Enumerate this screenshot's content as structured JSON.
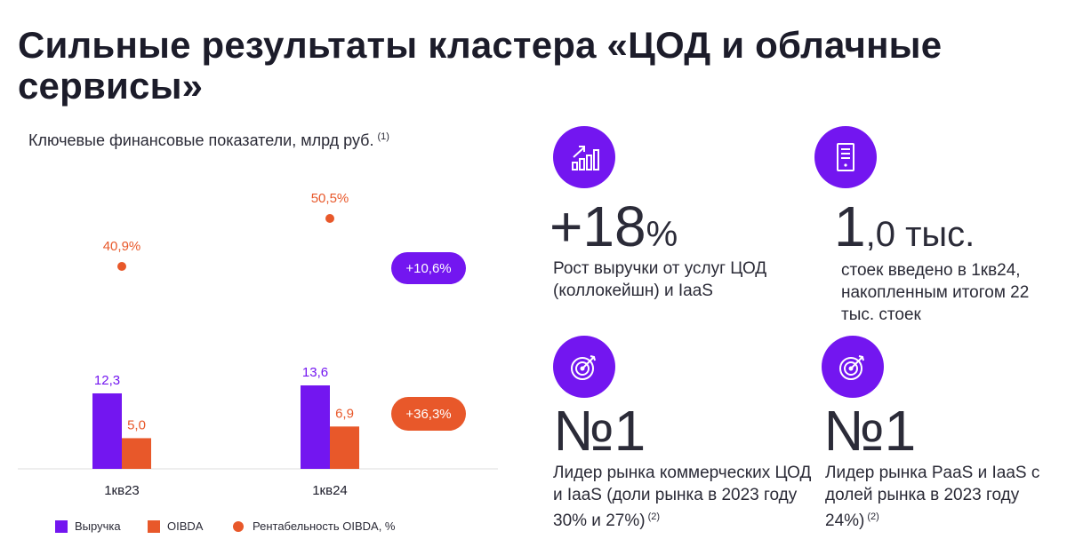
{
  "title": "Сильные результаты кластера «ЦОД и облачные сервисы»",
  "chart_subtitle": "Ключевые финансовые показатели, млрд руб.",
  "chart_subtitle_note": "(1)",
  "chart_data": {
    "type": "bar",
    "categories": [
      "1кв23",
      "1кв24"
    ],
    "series": [
      {
        "name": "Выручка",
        "values": [
          12.3,
          13.6
        ],
        "labels": [
          "12,3",
          "13,6"
        ],
        "color": "#7316f0"
      },
      {
        "name": "OIBDA",
        "values": [
          5.0,
          6.9
        ],
        "labels": [
          "5,0",
          "6,9"
        ],
        "color": "#e8582a"
      }
    ],
    "line_series": {
      "name": "Рентабельность OIBDA, %",
      "values": [
        40.9,
        50.5
      ],
      "labels": [
        "40,9%",
        "50,5%"
      ],
      "color": "#e8582a"
    },
    "growth_labels": {
      "revenue": "+10,6%",
      "oibda": "+36,3%"
    },
    "legend": [
      "Выручка",
      "OIBDA",
      "Рентабельность OIBDA, %"
    ],
    "title": "Ключевые финансовые показатели, млрд руб.",
    "xlabel": "",
    "ylabel": "",
    "ylim": [
      0,
      13.6
    ],
    "pct_ylim": [
      0,
      60
    ]
  },
  "colors": {
    "accent": "#7316f0",
    "orange": "#e8582a",
    "text": "#1c1c2a"
  },
  "stats": [
    {
      "icon": "chart-growth-icon",
      "value": "+18",
      "unit": "%",
      "desc": "Рост выручки от услуг ЦОД (коллокейшн) и IaaS",
      "note": ""
    },
    {
      "icon": "server-rack-icon",
      "value": "1",
      "unit": ",0 тыс.",
      "desc": "стоек введено в 1кв24, накопленным итогом 22 тыс. стоек",
      "note": ""
    },
    {
      "icon": "target-icon",
      "value": "№1",
      "unit": "",
      "desc": "Лидер рынка коммерческих ЦОД и IaaS (доли рынка в 2023 году 30% и 27%)",
      "note": "(2)"
    },
    {
      "icon": "target-icon",
      "value": "№1",
      "unit": "",
      "desc": "Лидер рынка PaaS и IaaS с долей рынка в 2023 году 24%)",
      "note": "(2)"
    }
  ]
}
